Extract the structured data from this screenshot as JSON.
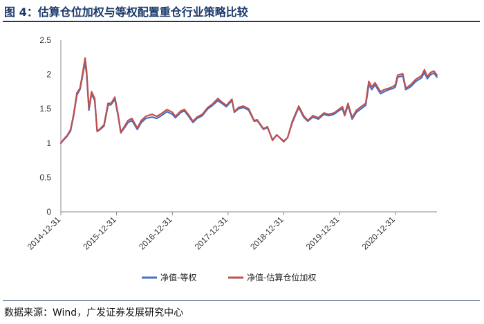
{
  "figure": {
    "title": "图 4：估算仓位加权与等权配置重仓行业策略比较",
    "source": "数据来源：Wind，广发证券发展研究中心"
  },
  "chart_data": {
    "type": "line",
    "ylim": [
      0,
      2.5
    ],
    "yticks": [
      "0",
      "0.5",
      "1",
      "1.5",
      "2",
      "2.5"
    ],
    "x_range": [
      "2014-12-31",
      "2021-09-30"
    ],
    "xticks": [
      "2014-12-31",
      "2015-12-31",
      "2016-12-31",
      "2017-12-31",
      "2018-12-31",
      "2019-12-31",
      "2020-12-31"
    ],
    "grid": false,
    "legend_position": "bottom",
    "series": [
      {
        "name": "净值-等权",
        "color": "#4472c4",
        "points": [
          [
            "2014-12-31",
            1.0
          ],
          [
            "2015-01-20",
            1.05
          ],
          [
            "2015-02-10",
            1.1
          ],
          [
            "2015-03-05",
            1.18
          ],
          [
            "2015-03-25",
            1.4
          ],
          [
            "2015-04-15",
            1.7
          ],
          [
            "2015-05-05",
            1.78
          ],
          [
            "2015-05-20",
            1.95
          ],
          [
            "2015-06-08",
            2.18
          ],
          [
            "2015-06-18",
            2.0
          ],
          [
            "2015-07-03",
            1.48
          ],
          [
            "2015-07-20",
            1.72
          ],
          [
            "2015-08-10",
            1.62
          ],
          [
            "2015-08-26",
            1.17
          ],
          [
            "2015-09-15",
            1.2
          ],
          [
            "2015-10-10",
            1.25
          ],
          [
            "2015-11-05",
            1.55
          ],
          [
            "2015-11-25",
            1.56
          ],
          [
            "2015-12-20",
            1.64
          ],
          [
            "2016-01-10",
            1.4
          ],
          [
            "2016-01-28",
            1.15
          ],
          [
            "2016-02-20",
            1.22
          ],
          [
            "2016-03-15",
            1.3
          ],
          [
            "2016-04-10",
            1.33
          ],
          [
            "2016-05-15",
            1.2
          ],
          [
            "2016-06-10",
            1.3
          ],
          [
            "2016-07-10",
            1.36
          ],
          [
            "2016-08-20",
            1.38
          ],
          [
            "2016-09-20",
            1.36
          ],
          [
            "2016-10-20",
            1.4
          ],
          [
            "2016-11-25",
            1.46
          ],
          [
            "2016-12-31",
            1.42
          ],
          [
            "2017-01-20",
            1.37
          ],
          [
            "2017-02-25",
            1.45
          ],
          [
            "2017-03-20",
            1.47
          ],
          [
            "2017-04-20",
            1.38
          ],
          [
            "2017-05-15",
            1.3
          ],
          [
            "2017-06-10",
            1.36
          ],
          [
            "2017-07-15",
            1.4
          ],
          [
            "2017-08-20",
            1.5
          ],
          [
            "2017-09-20",
            1.55
          ],
          [
            "2017-10-25",
            1.62
          ],
          [
            "2017-11-20",
            1.58
          ],
          [
            "2017-12-20",
            1.53
          ],
          [
            "2018-01-25",
            1.62
          ],
          [
            "2018-02-10",
            1.45
          ],
          [
            "2018-03-10",
            1.5
          ],
          [
            "2018-04-10",
            1.52
          ],
          [
            "2018-05-15",
            1.48
          ],
          [
            "2018-06-20",
            1.32
          ],
          [
            "2018-07-10",
            1.33
          ],
          [
            "2018-08-20",
            1.2
          ],
          [
            "2018-09-15",
            1.23
          ],
          [
            "2018-10-18",
            1.05
          ],
          [
            "2018-11-15",
            1.12
          ],
          [
            "2018-12-31",
            1.03
          ],
          [
            "2019-01-25",
            1.08
          ],
          [
            "2019-02-25",
            1.3
          ],
          [
            "2019-04-08",
            1.52
          ],
          [
            "2019-05-10",
            1.38
          ],
          [
            "2019-06-06",
            1.32
          ],
          [
            "2019-07-10",
            1.38
          ],
          [
            "2019-08-15",
            1.35
          ],
          [
            "2019-09-20",
            1.42
          ],
          [
            "2019-10-20",
            1.4
          ],
          [
            "2019-11-25",
            1.42
          ],
          [
            "2019-12-31",
            1.48
          ],
          [
            "2020-01-20",
            1.5
          ],
          [
            "2020-02-03",
            1.4
          ],
          [
            "2020-02-25",
            1.55
          ],
          [
            "2020-03-23",
            1.35
          ],
          [
            "2020-04-20",
            1.45
          ],
          [
            "2020-05-20",
            1.5
          ],
          [
            "2020-06-20",
            1.55
          ],
          [
            "2020-07-10",
            1.85
          ],
          [
            "2020-07-30",
            1.78
          ],
          [
            "2020-08-20",
            1.85
          ],
          [
            "2020-09-25",
            1.72
          ],
          [
            "2020-10-20",
            1.75
          ],
          [
            "2020-11-20",
            1.78
          ],
          [
            "2020-12-20",
            1.8
          ],
          [
            "2020-12-31",
            1.82
          ],
          [
            "2021-01-15",
            1.96
          ],
          [
            "2021-02-18",
            1.98
          ],
          [
            "2021-03-09",
            1.78
          ],
          [
            "2021-04-10",
            1.82
          ],
          [
            "2021-05-15",
            1.9
          ],
          [
            "2021-06-20",
            1.95
          ],
          [
            "2021-07-10",
            2.03
          ],
          [
            "2021-07-28",
            1.94
          ],
          [
            "2021-08-20",
            2.0
          ],
          [
            "2021-09-10",
            2.02
          ],
          [
            "2021-09-30",
            1.96
          ]
        ]
      },
      {
        "name": "净值-估算仓位加权",
        "color": "#c0504d",
        "points": [
          [
            "2014-12-31",
            1.0
          ],
          [
            "2015-01-20",
            1.06
          ],
          [
            "2015-02-10",
            1.11
          ],
          [
            "2015-03-05",
            1.2
          ],
          [
            "2015-03-25",
            1.42
          ],
          [
            "2015-04-15",
            1.73
          ],
          [
            "2015-05-05",
            1.8
          ],
          [
            "2015-05-20",
            1.98
          ],
          [
            "2015-06-08",
            2.24
          ],
          [
            "2015-06-18",
            2.05
          ],
          [
            "2015-07-03",
            1.5
          ],
          [
            "2015-07-20",
            1.75
          ],
          [
            "2015-08-10",
            1.65
          ],
          [
            "2015-08-26",
            1.18
          ],
          [
            "2015-09-15",
            1.21
          ],
          [
            "2015-10-10",
            1.27
          ],
          [
            "2015-11-05",
            1.58
          ],
          [
            "2015-11-25",
            1.58
          ],
          [
            "2015-12-20",
            1.67
          ],
          [
            "2016-01-10",
            1.42
          ],
          [
            "2016-01-28",
            1.16
          ],
          [
            "2016-02-20",
            1.24
          ],
          [
            "2016-03-15",
            1.33
          ],
          [
            "2016-04-10",
            1.36
          ],
          [
            "2016-05-15",
            1.22
          ],
          [
            "2016-06-10",
            1.33
          ],
          [
            "2016-07-10",
            1.39
          ],
          [
            "2016-08-20",
            1.42
          ],
          [
            "2016-09-20",
            1.39
          ],
          [
            "2016-10-20",
            1.43
          ],
          [
            "2016-11-25",
            1.49
          ],
          [
            "2016-12-31",
            1.45
          ],
          [
            "2017-01-20",
            1.39
          ],
          [
            "2017-02-25",
            1.47
          ],
          [
            "2017-03-20",
            1.49
          ],
          [
            "2017-04-20",
            1.4
          ],
          [
            "2017-05-15",
            1.32
          ],
          [
            "2017-06-10",
            1.38
          ],
          [
            "2017-07-15",
            1.42
          ],
          [
            "2017-08-20",
            1.52
          ],
          [
            "2017-09-20",
            1.57
          ],
          [
            "2017-10-25",
            1.65
          ],
          [
            "2017-11-20",
            1.6
          ],
          [
            "2017-12-20",
            1.55
          ],
          [
            "2018-01-25",
            1.64
          ],
          [
            "2018-02-10",
            1.46
          ],
          [
            "2018-03-10",
            1.52
          ],
          [
            "2018-04-10",
            1.54
          ],
          [
            "2018-05-15",
            1.5
          ],
          [
            "2018-06-20",
            1.33
          ],
          [
            "2018-07-10",
            1.34
          ],
          [
            "2018-08-20",
            1.21
          ],
          [
            "2018-09-15",
            1.24
          ],
          [
            "2018-10-18",
            1.04
          ],
          [
            "2018-11-15",
            1.12
          ],
          [
            "2018-12-31",
            1.02
          ],
          [
            "2019-01-25",
            1.08
          ],
          [
            "2019-02-25",
            1.32
          ],
          [
            "2019-04-08",
            1.54
          ],
          [
            "2019-05-10",
            1.4
          ],
          [
            "2019-06-06",
            1.33
          ],
          [
            "2019-07-10",
            1.4
          ],
          [
            "2019-08-15",
            1.37
          ],
          [
            "2019-09-20",
            1.44
          ],
          [
            "2019-10-20",
            1.42
          ],
          [
            "2019-11-25",
            1.44
          ],
          [
            "2019-12-31",
            1.5
          ],
          [
            "2020-01-20",
            1.53
          ],
          [
            "2020-02-03",
            1.42
          ],
          [
            "2020-02-25",
            1.58
          ],
          [
            "2020-03-23",
            1.37
          ],
          [
            "2020-04-20",
            1.48
          ],
          [
            "2020-05-20",
            1.53
          ],
          [
            "2020-06-20",
            1.58
          ],
          [
            "2020-07-10",
            1.9
          ],
          [
            "2020-07-30",
            1.82
          ],
          [
            "2020-08-20",
            1.88
          ],
          [
            "2020-09-25",
            1.75
          ],
          [
            "2020-10-20",
            1.78
          ],
          [
            "2020-11-20",
            1.8
          ],
          [
            "2020-12-20",
            1.83
          ],
          [
            "2020-12-31",
            1.85
          ],
          [
            "2021-01-15",
            1.99
          ],
          [
            "2021-02-18",
            2.01
          ],
          [
            "2021-03-09",
            1.8
          ],
          [
            "2021-04-10",
            1.85
          ],
          [
            "2021-05-15",
            1.93
          ],
          [
            "2021-06-20",
            1.98
          ],
          [
            "2021-07-10",
            2.07
          ],
          [
            "2021-07-28",
            1.97
          ],
          [
            "2021-08-20",
            2.03
          ],
          [
            "2021-09-10",
            2.05
          ],
          [
            "2021-09-30",
            1.99
          ]
        ]
      }
    ]
  }
}
